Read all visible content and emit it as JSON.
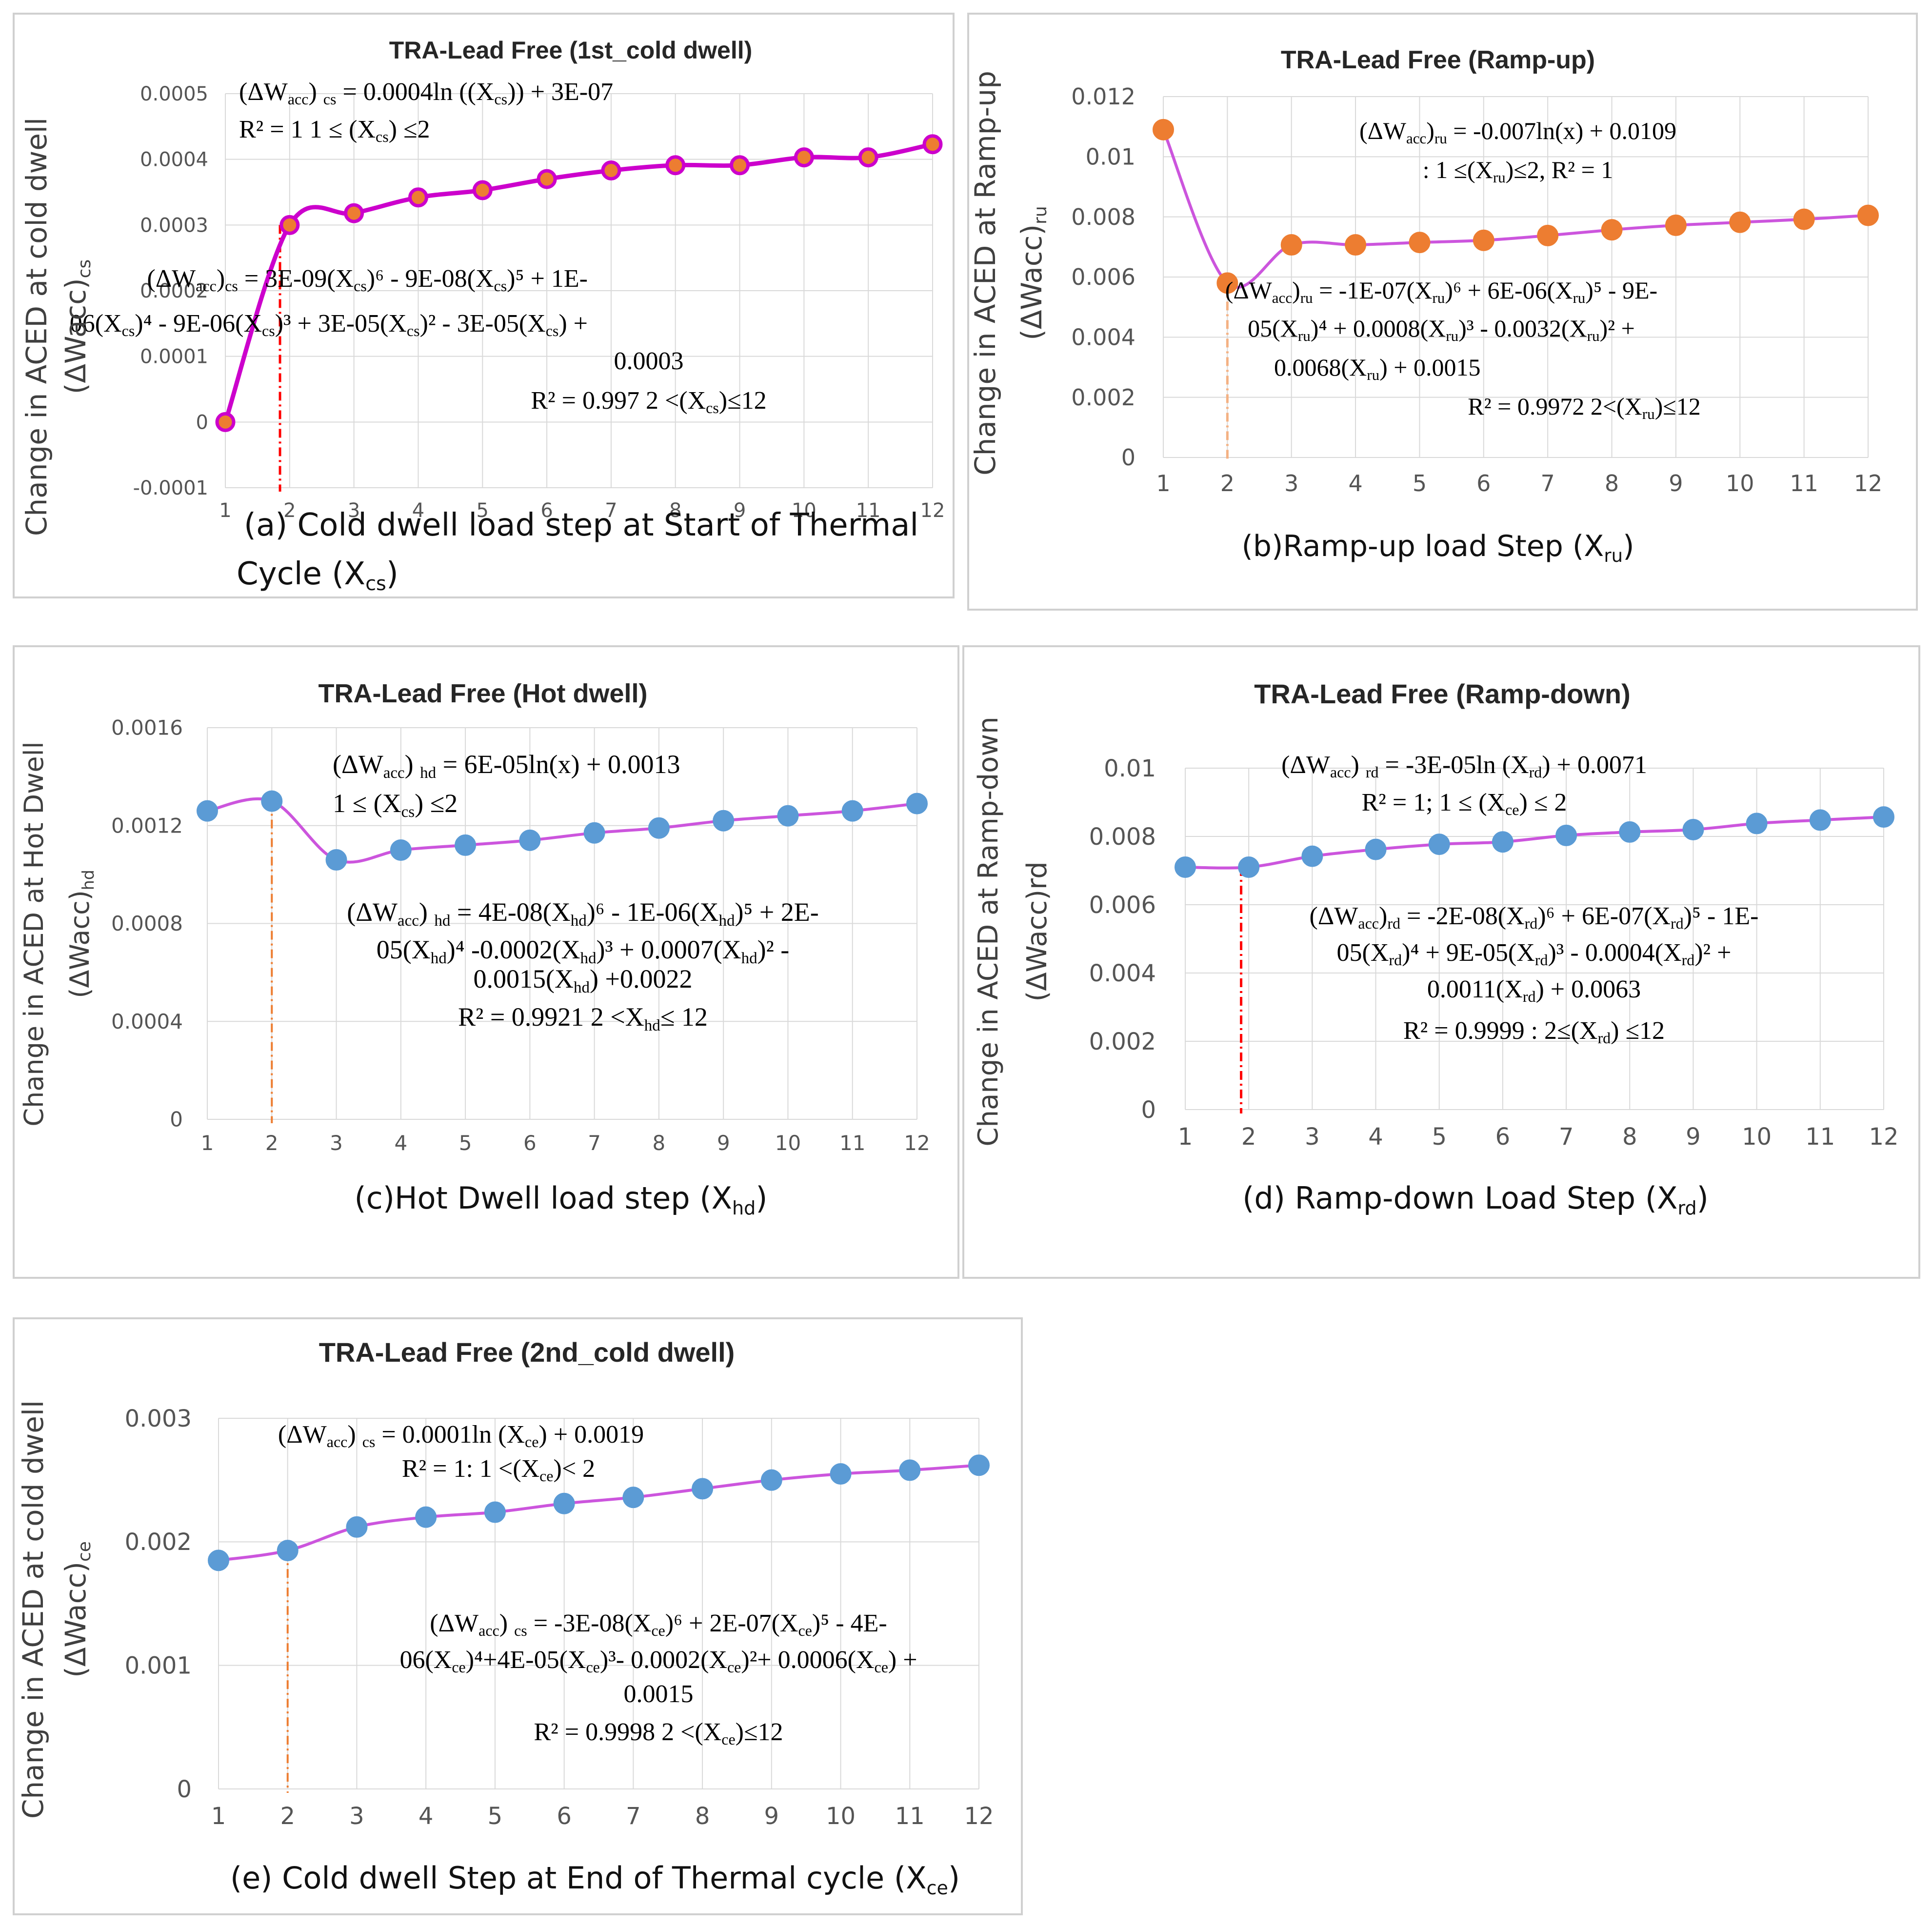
{
  "chart_data": [
    {
      "id": "a",
      "type": "line",
      "title": "TRA-Lead Free (1st_cold dwell)",
      "xlabel": "(a) Cold dwell load step at Start of Thermal Cycle (X",
      "xlabel_sub": "cs",
      "xlabel_end": ")",
      "ylabel": "Change in ACED at cold dwell",
      "ylabel2": "(ΔWacc)",
      "ylabel2_sub": "cs",
      "x": [
        1,
        2,
        3,
        4,
        5,
        6,
        7,
        8,
        9,
        10,
        11,
        12
      ],
      "values": [
        0,
        0.0003,
        0.000318,
        0.000342,
        0.000353,
        0.00037,
        0.000383,
        0.000391,
        0.000391,
        0.000403,
        0.000403,
        0.000423
      ],
      "ylim": [
        -0.0001,
        0.0005
      ],
      "yticks": [
        "-0.0001",
        "0",
        "0.0001",
        "0.0002",
        "0.0003",
        "0.0004",
        "0.0005"
      ],
      "xticks": [
        "1",
        "2",
        "3",
        "4",
        "5",
        "6",
        "7",
        "8",
        "9",
        "10",
        "11",
        "12"
      ],
      "line_color": "#cc00cc",
      "marker_color": "#ed7d31",
      "marker_stroke": "#cc00cc",
      "vline_color": "#ff0000",
      "vline_x": 1.85,
      "equations": [
        "(ΔWacc) cs = 0.0004ln ((Xcs)) + 3E-07",
        "R² = 1    1 ≤ (Xcs) ≤2",
        "(ΔWacc)cs = 3E-09(Xcs)⁶ - 9E-08(Xcs)⁵ + 1E-",
        "06(Xcs)⁴ - 9E-06(Xcs)³ + 3E-05(Xcs)² - 3E-05(Xcs) +",
        "0.0003",
        "R² = 0.997    2 <(Xcs)≤12"
      ]
    },
    {
      "id": "b",
      "type": "line",
      "title": "TRA-Lead Free (Ramp-up)",
      "xlabel": "(b)Ramp-up load Step (X",
      "xlabel_sub": "ru",
      "xlabel_end": ")",
      "ylabel": "Change in ACED at Ramp-up",
      "ylabel2": "(ΔWacc)",
      "ylabel2_sub": "ru",
      "x": [
        1,
        2,
        3,
        4,
        5,
        6,
        7,
        8,
        9,
        10,
        11,
        12
      ],
      "values": [
        0.0109,
        0.0058,
        0.00707,
        0.00707,
        0.00715,
        0.00722,
        0.00738,
        0.00757,
        0.00772,
        0.00782,
        0.00792,
        0.00805
      ],
      "ylim": [
        0,
        0.012
      ],
      "yticks": [
        "0",
        "0.002",
        "0.004",
        "0.006",
        "0.008",
        "0.01",
        "0.012"
      ],
      "xticks": [
        "1",
        "2",
        "3",
        "4",
        "5",
        "6",
        "7",
        "8",
        "9",
        "10",
        "11",
        "12"
      ],
      "line_color": "#cc55dd",
      "marker_color": "#ed7d31",
      "marker_stroke": "#ed7d31",
      "vline_color": "#f4b183",
      "vline_x": 2,
      "equations": [
        "(ΔWacc)ru = -0.007ln(x) + 0.0109",
        ": 1 ≤(Xru)≤2, R² = 1",
        "(ΔWacc)ru = -1E-07(Xru)⁶ + 6E-06(Xru)⁵ - 9E-",
        "05(Xru)⁴ + 0.0008(Xru)³ - 0.0032(Xru)² +",
        "0.0068(Xru) + 0.0015",
        "R² = 0.9972   2<(Xru)≤12"
      ]
    },
    {
      "id": "c",
      "type": "line",
      "title": "TRA-Lead Free (Hot dwell)",
      "xlabel": "(c)Hot Dwell load step (X",
      "xlabel_sub": "hd",
      "xlabel_end": ")",
      "ylabel": "Change in ACED at Hot Dwell",
      "ylabel2": "(ΔWacc)",
      "ylabel2_sub": "hd",
      "x": [
        1,
        2,
        3,
        4,
        5,
        6,
        7,
        8,
        9,
        10,
        11,
        12
      ],
      "values": [
        0.00126,
        0.0013,
        0.00106,
        0.0011,
        0.00112,
        0.00114,
        0.00117,
        0.00119,
        0.00122,
        0.00124,
        0.00126,
        0.00129
      ],
      "ylim": [
        0,
        0.0016
      ],
      "yticks": [
        "0",
        "0.0004",
        "0.0008",
        "0.0012",
        "0.0016"
      ],
      "xticks": [
        "1",
        "2",
        "3",
        "4",
        "5",
        "6",
        "7",
        "8",
        "9",
        "10",
        "11",
        "12"
      ],
      "line_color": "#cc55dd",
      "marker_color": "#5b9bd5",
      "marker_stroke": "#5b9bd5",
      "vline_color": "#ed7d31",
      "vline_x": 2,
      "equations": [
        "(ΔWacc) hd = 6E-05ln(x) + 0.0013",
        "1 ≤ (Xcs) ≤2",
        "(ΔWacc) hd = 4E-08(Xhd)⁶ - 1E-06(Xhd)⁵ + 2E-",
        "05(Xhd)⁴ -0.0002(Xhd)³ + 0.0007(Xhd)²  -",
        "0.0015(Xhd) +0.0022",
        "R² = 0.9921    2 <Xhd≤ 12"
      ]
    },
    {
      "id": "d",
      "type": "line",
      "title": "TRA-Lead Free (Ramp-down)",
      "xlabel": "(d) Ramp-down Load Step (X",
      "xlabel_sub": "rd",
      "xlabel_end": ")",
      "ylabel": "Change in ACED at Ramp-down",
      "ylabel2": "(ΔWacc)rd",
      "ylabel2_sub": "",
      "x": [
        1,
        2,
        3,
        4,
        5,
        6,
        7,
        8,
        9,
        10,
        11,
        12
      ],
      "values": [
        0.0071,
        0.0071,
        0.00742,
        0.00762,
        0.00777,
        0.00784,
        0.00803,
        0.00813,
        0.0082,
        0.00838,
        0.00848,
        0.00857
      ],
      "ylim": [
        0,
        0.01
      ],
      "yticks": [
        "0",
        "0.002",
        "0.004",
        "0.006",
        "0.008",
        "0.01"
      ],
      "xticks": [
        "1",
        "2",
        "3",
        "4",
        "5",
        "6",
        "7",
        "8",
        "9",
        "10",
        "11",
        "12"
      ],
      "line_color": "#cc55dd",
      "marker_color": "#5b9bd5",
      "marker_stroke": "#5b9bd5",
      "vline_color": "#ff0000",
      "vline_x": 1.88,
      "equations": [
        "(ΔWacc) rd = -3E-05ln (Xrd) + 0.0071",
        "R² = 1; 1 ≤ (Xce) ≤ 2",
        "(ΔWacc)rd = -2E-08(Xrd)⁶ + 6E-07(Xrd)⁵ - 1E-",
        "05(Xrd)⁴ + 9E-05(Xrd)³ - 0.0004(Xrd)² +",
        "0.0011(Xrd) + 0.0063",
        "R² = 0.9999  : 2≤(Xrd) ≤12"
      ]
    },
    {
      "id": "e",
      "type": "line",
      "title": "TRA-Lead Free (2nd_cold dwell)",
      "xlabel": "(e) Cold dwell Step at End of Thermal cycle (X",
      "xlabel_sub": "ce",
      "xlabel_end": ")",
      "ylabel": "Change in ACED at cold dwell",
      "ylabel2": "(ΔWacc)",
      "ylabel2_sub": "ce",
      "x": [
        1,
        2,
        3,
        4,
        5,
        6,
        7,
        8,
        9,
        10,
        11,
        12
      ],
      "values": [
        0.00185,
        0.00193,
        0.00212,
        0.0022,
        0.00224,
        0.00231,
        0.00236,
        0.00243,
        0.0025,
        0.00255,
        0.00258,
        0.00262
      ],
      "ylim": [
        0,
        0.003
      ],
      "yticks": [
        "0",
        "0.001",
        "0.002",
        "0.003"
      ],
      "xticks": [
        "1",
        "2",
        "3",
        "4",
        "5",
        "6",
        "7",
        "8",
        "9",
        "10",
        "11",
        "12"
      ],
      "line_color": "#cc55dd",
      "marker_color": "#5b9bd5",
      "marker_stroke": "#5b9bd5",
      "vline_color": "#ed7d31",
      "vline_x": 2,
      "equations": [
        "(ΔWacc) cs = 0.0001ln (Xce) + 0.0019",
        "R² = 1:  1 <(Xce)< 2",
        "(ΔWacc) cs = -3E-08(Xce)⁶ + 2E-07(Xce)⁵ - 4E-",
        "06(Xce)⁴+4E-05(Xce)³- 0.0002(Xce)²+ 0.0006(Xce) +",
        "0.0015",
        "R² = 0.9998   2 <(Xce)≤12"
      ]
    }
  ]
}
